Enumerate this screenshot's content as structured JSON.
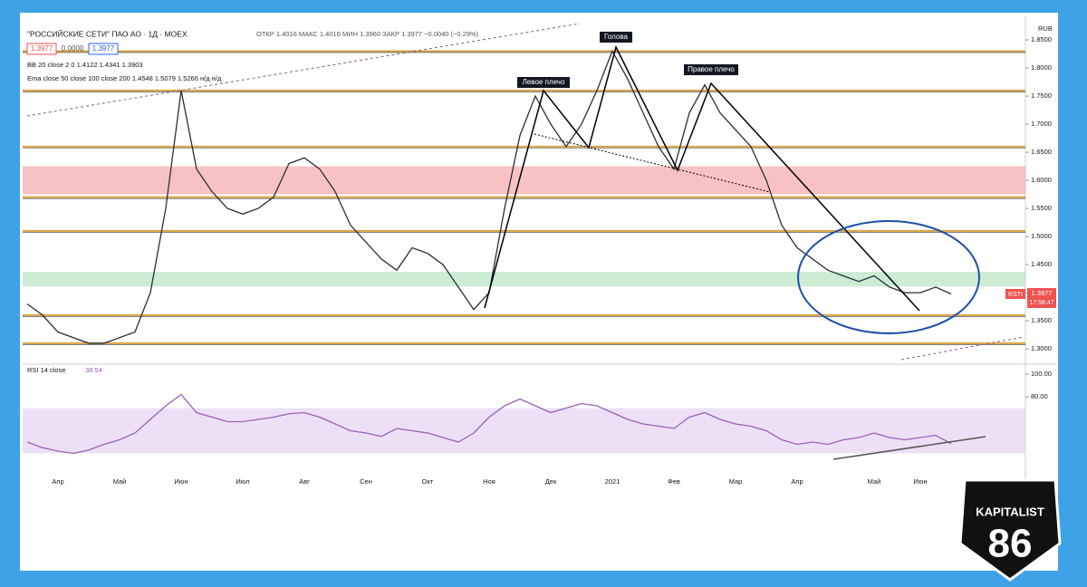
{
  "header": {
    "symbol": "\"РОССИЙСКИЕ СЕТИ\" ПАО АО · 1Д · MOEX",
    "ohlc": "ОТКР 1.4016  МАКС 1.4016  МИН 1.3960  ЗАКР 1.3977  −0.0040 (−0.29%)",
    "bid": "1.3977",
    "spread": "0.0000",
    "ask": "1.3977",
    "bb": "BB 20 close 2 0   1.4122  1.4341  1.3903",
    "ema": "Ema close 50 close 100 close 200   1.4548  1.5079  1.5266  н/д  н/д",
    "currency": "RUB",
    "ticker_tag": "RSTI",
    "price_tag": "1.3977",
    "timer": "17:58:47"
  },
  "annotations": [
    "Левое плечо",
    "Голова",
    "Правое плечо"
  ],
  "logo": {
    "brand": "KAPITALIST",
    "number": "86"
  },
  "chart_data": [
    {
      "type": "line",
      "color": "#2a2e39",
      "categories": [
        null,
        null,
        "Апр",
        null,
        null,
        null,
        "Май",
        null,
        null,
        null,
        "Июн",
        null,
        null,
        null,
        "Июл",
        null,
        null,
        null,
        "Авг",
        null,
        null,
        null,
        "Сен",
        null,
        null,
        null,
        "Окт",
        null,
        null,
        null,
        "Ноя",
        null,
        null,
        null,
        "Дек",
        null,
        null,
        null,
        "2021",
        null,
        null,
        null,
        "Фев",
        null,
        null,
        null,
        "Мар",
        null,
        null,
        null,
        "Апр",
        null,
        null,
        null,
        null,
        "Май",
        null,
        null,
        "Июн",
        null,
        null
      ],
      "values": [
        1.38,
        1.36,
        1.33,
        1.32,
        1.31,
        1.31,
        1.32,
        1.33,
        1.4,
        1.55,
        1.76,
        1.62,
        1.58,
        1.55,
        1.54,
        1.55,
        1.57,
        1.63,
        1.64,
        1.62,
        1.58,
        1.52,
        1.49,
        1.46,
        1.44,
        1.48,
        1.47,
        1.45,
        1.41,
        1.37,
        1.4,
        1.55,
        1.68,
        1.75,
        1.7,
        1.66,
        1.7,
        1.76,
        1.83,
        1.78,
        1.72,
        1.66,
        1.62,
        1.72,
        1.77,
        1.72,
        1.69,
        1.66,
        1.6,
        1.52,
        1.48,
        1.46,
        1.44,
        1.43,
        1.42,
        1.43,
        1.41,
        1.4,
        1.4,
        1.41,
        1.3977
      ],
      "ylim": [
        1.276,
        1.892
      ],
      "yticks": [
        {
          "value": 1.3,
          "label": "1.3000"
        },
        {
          "value": 1.35,
          "label": "1.3500"
        },
        {
          "value": 1.4,
          "label": "1.4000"
        },
        {
          "value": 1.45,
          "label": "1.4500"
        },
        {
          "value": 1.5,
          "label": "1.5000"
        },
        {
          "value": 1.55,
          "label": "1.5500"
        },
        {
          "value": 1.6,
          "label": "1.6000"
        },
        {
          "value": 1.65,
          "label": "1.6500"
        },
        {
          "value": 1.7,
          "label": "1.7000"
        },
        {
          "value": 1.75,
          "label": "1.7500"
        },
        {
          "value": 1.8,
          "label": "1.8000"
        },
        {
          "value": 1.85,
          "label": "1.8500"
        }
      ],
      "levels": [
        1.83,
        1.76,
        1.66,
        1.57,
        1.51,
        1.36,
        1.31
      ],
      "zones": [
        {
          "from": 1.575,
          "to": 1.625,
          "color": "#f7a8a8"
        },
        {
          "from": 1.411,
          "to": 1.437,
          "color": "#b7e4c2"
        }
      ]
    },
    {
      "type": "line",
      "title": "RSI 14 close",
      "value_label": "38.54",
      "color": "#9c5fb5",
      "values": [
        40,
        35,
        32,
        30,
        33,
        38,
        42,
        48,
        60,
        72,
        82,
        66,
        62,
        58,
        58,
        60,
        62,
        65,
        66,
        62,
        56,
        50,
        48,
        45,
        52,
        50,
        48,
        44,
        40,
        48,
        62,
        72,
        78,
        72,
        66,
        70,
        74,
        72,
        66,
        60,
        56,
        54,
        52,
        62,
        66,
        60,
        56,
        54,
        50,
        42,
        38,
        40,
        38,
        42,
        44,
        48,
        44,
        42,
        44,
        46,
        38.54
      ],
      "ylim": [
        14.4,
        106.4
      ],
      "yticks": [
        {
          "value": 100,
          "label": "100.00"
        },
        {
          "value": 80,
          "label": "80.00"
        }
      ],
      "band": [
        30,
        70
      ]
    }
  ]
}
